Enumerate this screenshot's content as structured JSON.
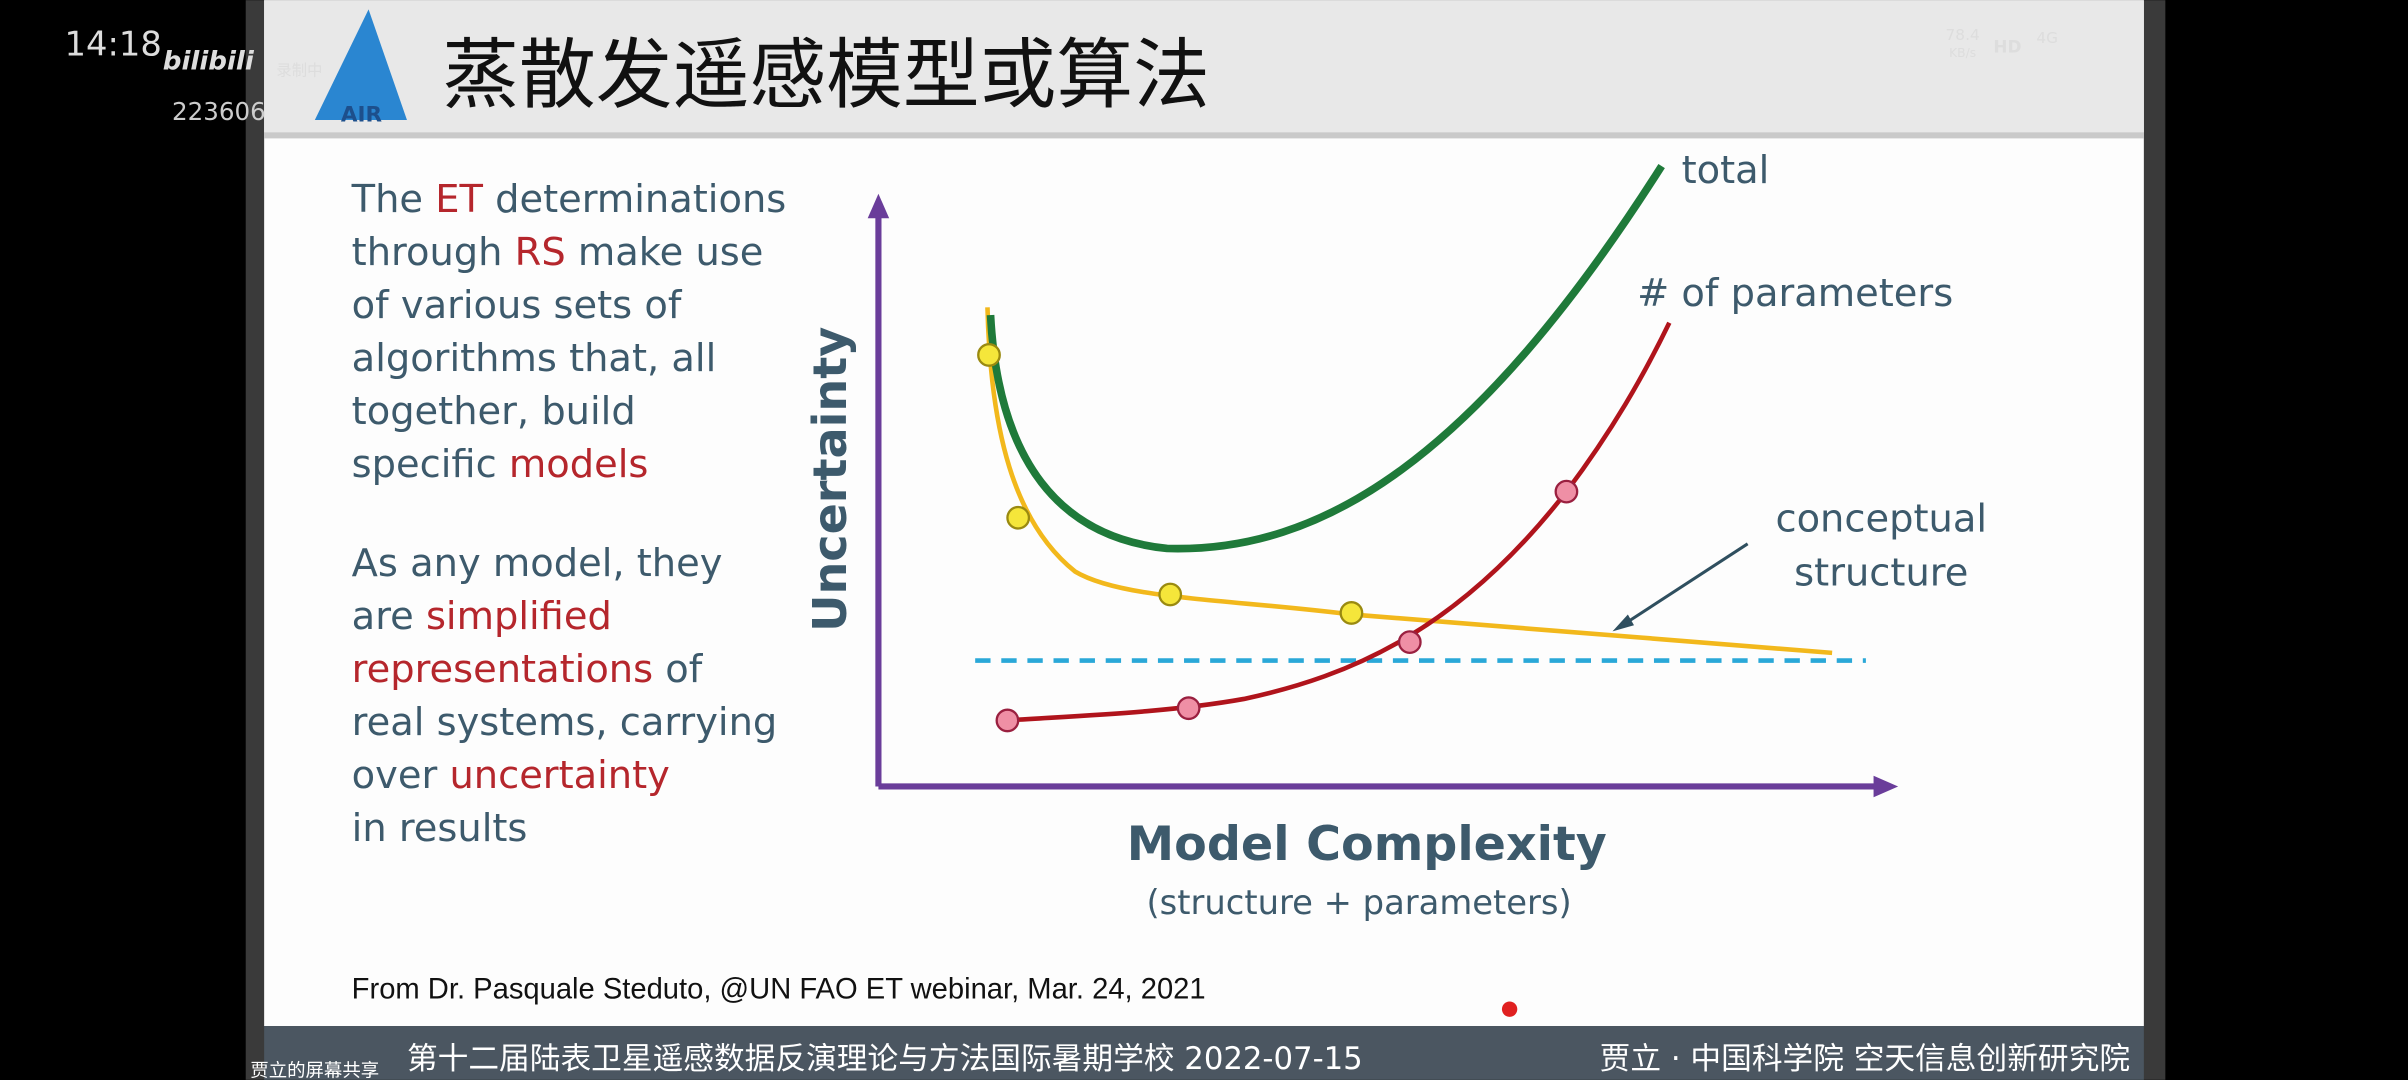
{
  "status_bar": {
    "time": "14:18",
    "app": "bilibili",
    "user_id": "223606",
    "recording": "录制中",
    "net_speed": "78.4",
    "net_unit": "KB/s",
    "hd": "HD",
    "network": "4G"
  },
  "slide": {
    "logo": "AIR",
    "title": "蒸散发遥感模型或算法",
    "paragraph1": [
      [
        {
          "t": "The "
        },
        {
          "t": "ET",
          "hl": true
        },
        {
          "t": " determinations"
        }
      ],
      [
        {
          "t": "through "
        },
        {
          "t": "RS",
          "hl": true
        },
        {
          "t": " make use"
        }
      ],
      [
        {
          "t": "of various sets of"
        }
      ],
      [
        {
          "t": "algorithms that, all"
        }
      ],
      [
        {
          "t": "together, build"
        }
      ],
      [
        {
          "t": "specific "
        },
        {
          "t": "models",
          "hl": true
        }
      ]
    ],
    "paragraph2": [
      [
        {
          "t": "As any model, they"
        }
      ],
      [
        {
          "t": "are "
        },
        {
          "t": "simplified",
          "hl": true
        }
      ],
      [
        {
          "t": "representations",
          "hl": true
        },
        {
          "t": " of"
        }
      ],
      [
        {
          "t": "real systems, carrying"
        }
      ],
      [
        {
          "t": "over "
        },
        {
          "t": "uncertainty",
          "hl": true
        }
      ],
      [
        {
          "t": "in results"
        }
      ]
    ],
    "diagram": {
      "y_label": "Uncertainty",
      "x_label": "Model Complexity",
      "x_sublabel": "(structure + parameters)",
      "total": "total",
      "parameters": "# of parameters",
      "conceptual_1": "conceptual",
      "conceptual_2": "structure"
    },
    "citation": "From Dr. Pasquale Steduto, @UN FAO ET webinar, Mar. 24, 2021",
    "footer_left": "第十二届陆表卫星遥感数据反演理论与方法国际暑期学校 2022-07-15",
    "footer_right": "贾立 · 中国科学院 空天信息创新研究院"
  },
  "share_label": "贾立的屏幕共享"
}
